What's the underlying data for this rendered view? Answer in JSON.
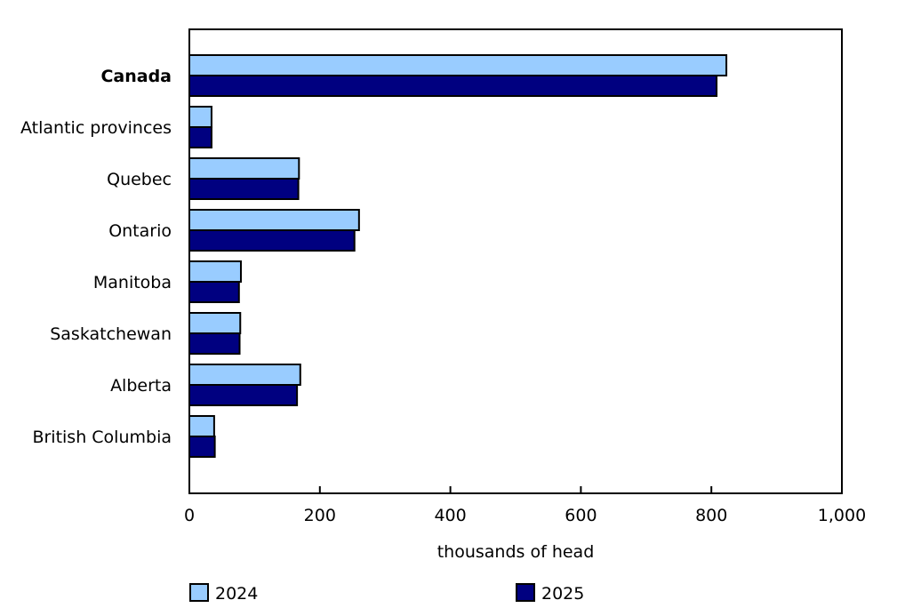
{
  "chart_data": {
    "type": "bar",
    "orientation": "horizontal",
    "title": "",
    "categories": [
      "Canada",
      "Atlantic provinces",
      "Quebec",
      "Ontario",
      "Manitoba",
      "Saskatchewan",
      "Alberta",
      "British Columbia"
    ],
    "bold_categories": [
      "Canada"
    ],
    "series": [
      {
        "name": "2024",
        "color": "#99ccff",
        "values": [
          823,
          34,
          168,
          260,
          79,
          78,
          170,
          38
        ]
      },
      {
        "name": "2025",
        "color": "#000080",
        "values": [
          808,
          34,
          167,
          253,
          76,
          77,
          165,
          39
        ]
      }
    ],
    "xlabel": "thousands of head",
    "ylabel": "",
    "xlim": [
      0,
      1000
    ],
    "xticks": [
      0,
      200,
      400,
      600,
      800,
      1000
    ],
    "xtick_labels": [
      "0",
      "200",
      "400",
      "600",
      "800",
      "1,000"
    ],
    "grid": false,
    "legend_position": "bottom"
  },
  "legend": {
    "items": [
      {
        "label": "2024",
        "color": "#99ccff"
      },
      {
        "label": "2025",
        "color": "#000080"
      }
    ]
  }
}
